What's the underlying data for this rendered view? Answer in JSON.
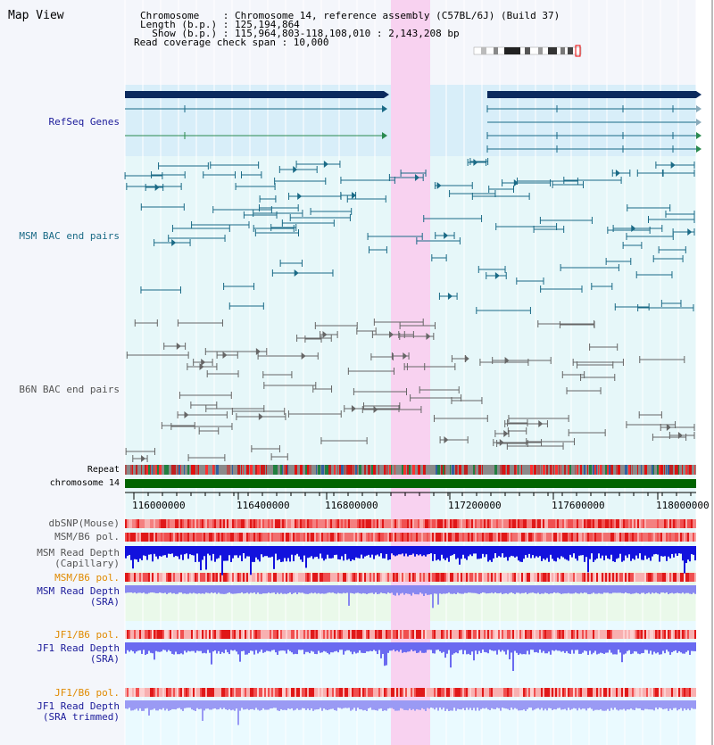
{
  "title": "Map View",
  "header": {
    "chromosome_line": "Chromosome    : Chromosome 14, reference assembly (C57BL/6J) (Build 37)",
    "length_line": "Length (b.p.) : 125,194,864",
    "show_line": "  Show (b.p.) : 115,964,803-118,108,010 : 2,143,208 bp",
    "coverage_line": "Read coverage check span : 10,000"
  },
  "tracks": {
    "refseq": "RefSeq Genes",
    "msm_bac": "MSM BAC end pairs",
    "b6n_bac": "B6N BAC end pairs",
    "repeat": "Repeat",
    "chromosome": "chromosome 14",
    "dbsnp": "dbSNP(Mouse)",
    "msm_b6_pol_cap": "MSM/B6 pol.",
    "msm_depth_cap_1": "MSM Read Depth",
    "msm_depth_cap_2": "(Capillary)",
    "msm_b6_pol_sra": "MSM/B6 pol.",
    "msm_depth_sra_1": "MSM Read Depth",
    "msm_depth_sra_2": "(SRA)",
    "jf1_b6_pol_sra": "JF1/B6 pol.",
    "jf1_depth_sra_1": "JF1 Read Depth",
    "jf1_depth_sra_2": "(SRA)",
    "jf1_b6_pol_trim": "JF1/B6 pol.",
    "jf1_depth_trim_1": "JF1 Read Depth",
    "jf1_depth_trim_2": "(SRA trimmed)"
  },
  "axis": {
    "ticks": [
      "116000000",
      "116400000",
      "116800000",
      "117200000",
      "117600000",
      "118000000"
    ]
  },
  "colors": {
    "refseq": "#0b2a5e",
    "msm_bac": "#1a6a86",
    "b6n_bac": "#666666",
    "chromosome": "#006400",
    "highlight": "#f8d2f0",
    "pol_orange": "#e08a00",
    "depth_blue": "#1010dd"
  }
}
